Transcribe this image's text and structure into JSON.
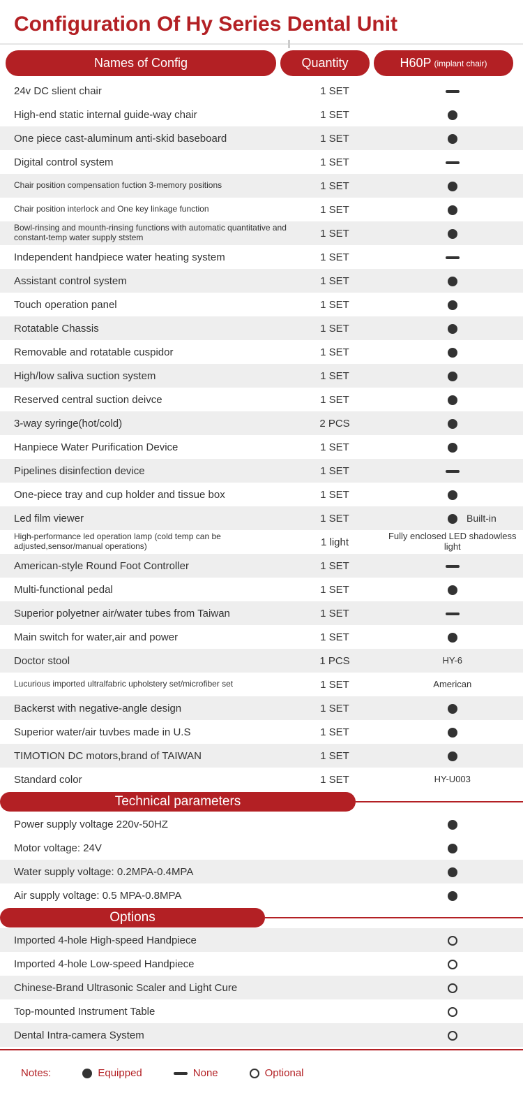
{
  "title": "Configuration Of Hy Series Dental Unit",
  "headers": {
    "name": "Names of Config",
    "qty": "Quantity",
    "model": "H60P",
    "model_sub": "(implant chair)"
  },
  "config_rows": [
    {
      "name": "24v DC slient chair",
      "qty": "1 SET",
      "mark": "dash",
      "small": false
    },
    {
      "name": "High-end static internal guide-way chair",
      "qty": "1 SET",
      "mark": "dot",
      "small": false
    },
    {
      "name": "One piece cast-aluminum anti-skid baseboard",
      "qty": "1 SET",
      "mark": "dot",
      "small": false
    },
    {
      "name": "Digital control system",
      "qty": "1 SET",
      "mark": "dash",
      "small": false
    },
    {
      "name": "Chair position compensation fuction 3-memory positions",
      "qty": "1 SET",
      "mark": "dot",
      "small": true
    },
    {
      "name": "Chair position interlock and One key linkage function",
      "qty": "1 SET",
      "mark": "dot",
      "small": true
    },
    {
      "name": "Bowl-rinsing and mounth-rinsing functions with automatic quantitative and constant-temp water supply ststem",
      "qty": "1 SET",
      "mark": "dot",
      "small": true
    },
    {
      "name": "Independent handpiece water heating system",
      "qty": "1 SET",
      "mark": "dash",
      "small": false
    },
    {
      "name": "Assistant control system",
      "qty": "1 SET",
      "mark": "dot",
      "small": false
    },
    {
      "name": "Touch operation panel",
      "qty": "1 SET",
      "mark": "dot",
      "small": false
    },
    {
      "name": "Rotatable Chassis",
      "qty": "1 SET",
      "mark": "dot",
      "small": false
    },
    {
      "name": "Removable and rotatable cuspidor",
      "qty": "1 SET",
      "mark": "dot",
      "small": false
    },
    {
      "name": "High/low saliva suction system",
      "qty": "1 SET",
      "mark": "dot",
      "small": false
    },
    {
      "name": "Reserved central suction deivce",
      "qty": "1 SET",
      "mark": "dot",
      "small": false
    },
    {
      "name": "3-way syringe(hot/cold)",
      "qty": "2 PCS",
      "mark": "dot",
      "small": false
    },
    {
      "name": "Hanpiece Water Purification Device",
      "qty": "1 SET",
      "mark": "dot",
      "small": false
    },
    {
      "name": "Pipelines disinfection device",
      "qty": "1 SET",
      "mark": "dash",
      "small": false
    },
    {
      "name": "One-piece tray and cup holder and tissue box",
      "qty": "1 SET",
      "mark": "dot",
      "small": false
    },
    {
      "name": "Led  film viewer",
      "qty": "1 SET",
      "mark": "dot",
      "extra": "Built-in",
      "small": false
    },
    {
      "name": "High-performance led operation lamp (cold temp can be adjusted,sensor/manual operations)",
      "qty": "1 light",
      "mark": "text",
      "text": "Fully enclosed LED shadowless light",
      "small": true
    },
    {
      "name": "American-style Round Foot Controller",
      "qty": "1 SET",
      "mark": "dash",
      "small": false
    },
    {
      "name": "Multi-functional pedal",
      "qty": "1 SET",
      "mark": "dot",
      "small": false
    },
    {
      "name": "Superior polyetner air/water tubes from Taiwan",
      "qty": "1 SET",
      "mark": "dash",
      "small": false
    },
    {
      "name": "Main switch for water,air and power",
      "qty": "1 SET",
      "mark": "dot",
      "small": false
    },
    {
      "name": "Doctor stool",
      "qty": "1 PCS",
      "mark": "text",
      "text": "HY-6",
      "small": false
    },
    {
      "name": "Lucurious imported ultralfabric upholstery set/microfiber set",
      "qty": "1 SET",
      "mark": "text",
      "text": "American",
      "small": true
    },
    {
      "name": "Backerst with negative-angle design",
      "qty": "1 SET",
      "mark": "dot",
      "small": false
    },
    {
      "name": "Superior water/air tuvbes made in U.S",
      "qty": "1 SET",
      "mark": "dot",
      "small": false
    },
    {
      "name": "TIMOTION DC motors,brand of TAIWAN",
      "qty": "1 SET",
      "mark": "dot",
      "small": false
    },
    {
      "name": "Standard color",
      "qty": "1 SET",
      "mark": "text",
      "text": "HY-U003",
      "small": false
    }
  ],
  "config_alt": [
    false,
    false,
    true,
    false,
    true,
    false,
    true,
    false,
    true,
    false,
    true,
    false,
    true,
    false,
    true,
    false,
    true,
    false,
    true,
    false,
    true,
    false,
    true,
    false,
    true,
    false,
    true,
    false,
    true,
    false
  ],
  "tech_label": "Technical parameters",
  "tech_rows": [
    {
      "name": "Power supply voltage 220v-50HZ",
      "mark": "dot"
    },
    {
      "name": "Motor voltage: 24V",
      "mark": "dot"
    },
    {
      "name": "Water supply voltage: 0.2MPA-0.4MPA",
      "mark": "dot"
    },
    {
      "name": "Air supply voltage: 0.5 MPA-0.8MPA",
      "mark": "dot"
    }
  ],
  "tech_alt": [
    false,
    false,
    true,
    false
  ],
  "options_label": "Options",
  "option_rows": [
    {
      "name": "Imported 4-hole High-speed Handpiece",
      "mark": "circ"
    },
    {
      "name": "Imported 4-hole Low-speed Handpiece",
      "mark": "circ"
    },
    {
      "name": "Chinese-Brand Ultrasonic Scaler and Light Cure",
      "mark": "circ"
    },
    {
      "name": "Top-mounted Instrument Table",
      "mark": "circ"
    },
    {
      "name": "Dental Intra-camera System",
      "mark": "circ"
    }
  ],
  "option_alt": [
    true,
    false,
    true,
    false,
    true
  ],
  "legend": {
    "notes": "Notes:",
    "equipped": "Equipped",
    "none": "None",
    "optional": "Optional"
  }
}
